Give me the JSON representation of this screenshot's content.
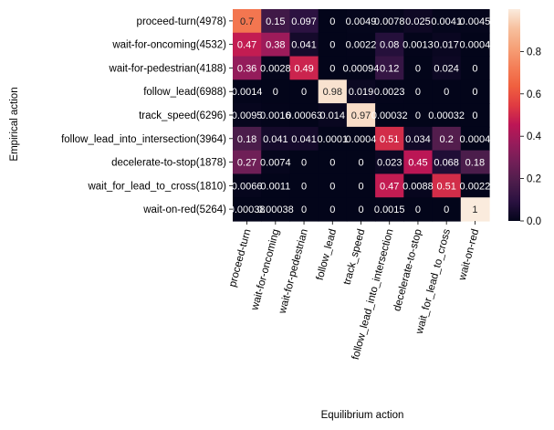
{
  "chart_data": {
    "type": "heatmap",
    "xlabel": "Equilibrium action",
    "ylabel": "Empirical action",
    "x_categories": [
      "proceed-turn",
      "wait-for-oncoming",
      "wait-for-pedestrian",
      "follow_lead",
      "track_speed",
      "follow_lead_into_intersection",
      "decelerate-to-stop",
      "wait_for_lead_to_cross",
      "wait-on-red"
    ],
    "y_categories": [
      "proceed-turn(4978)",
      "wait-for-oncoming(4532)",
      "wait-for-pedestrian(4188)",
      "follow_lead(6988)",
      "track_speed(6296)",
      "follow_lead_into_intersection(3964)",
      "decelerate-to-stop(1878)",
      "wait_for_lead_to_cross(1810)",
      "wait-on-red(5264)"
    ],
    "values": [
      [
        0.7,
        0.15,
        0.097,
        0,
        0.0049,
        0.0078,
        0.025,
        0.0041,
        0.0045
      ],
      [
        0.47,
        0.38,
        0.041,
        0,
        0.0022,
        0.08,
        0.0013,
        0.017,
        0.0004
      ],
      [
        0.36,
        0.0028,
        0.49,
        0,
        0.00094,
        0.12,
        0,
        0.024,
        0
      ],
      [
        0.0014,
        0,
        0,
        0.98,
        0.019,
        0.0023,
        0,
        0,
        0
      ],
      [
        0.0095,
        0.0016,
        0.00063,
        0.014,
        0.97,
        0.00032,
        0,
        0.00032,
        0
      ],
      [
        0.18,
        0.041,
        0.041,
        0.0001,
        0.0004,
        0.51,
        0.034,
        0.2,
        0.0004
      ],
      [
        0.27,
        0.0074,
        0,
        0,
        0,
        0.023,
        0.45,
        0.068,
        0.18
      ],
      [
        0.0066,
        0.0011,
        0,
        0,
        0,
        0.47,
        0.0088,
        0.51,
        0.0022
      ],
      [
        0.00038,
        0.00038,
        0,
        0,
        0,
        0.0015,
        0,
        0,
        1
      ]
    ],
    "cell_labels": [
      [
        "0.7",
        "0.15",
        "0.097",
        "0",
        "0.0049",
        "0.0078",
        "0.025",
        "0.0041",
        "0.0045"
      ],
      [
        "0.47",
        "0.38",
        "0.041",
        "0",
        "0.0022",
        "0.08",
        "0.0013",
        "0.017",
        "0.0004"
      ],
      [
        "0.36",
        "0.0028",
        "0.49",
        "0",
        "0.00094",
        "0.12",
        "0",
        "0.024",
        "0"
      ],
      [
        "0.0014",
        "0",
        "0",
        "0.98",
        "0.019",
        "0.0023",
        "0",
        "0",
        "0"
      ],
      [
        "0.0095",
        "0.0016",
        "0.00063",
        "0.014",
        "0.97",
        "0.00032",
        "0",
        "0.00032",
        "0"
      ],
      [
        "0.18",
        "0.041",
        "0.041",
        "0.0001",
        "0.0004",
        "0.51",
        "0.034",
        "0.2",
        "0.0004"
      ],
      [
        "0.27",
        "0.0074",
        "0",
        "0",
        "0",
        "0.023",
        "0.45",
        "0.068",
        "0.18"
      ],
      [
        "0.0066",
        "0.0011",
        "0",
        "0",
        "0",
        "0.47",
        "0.0088",
        "0.51",
        "0.0022"
      ],
      [
        "0.00038",
        "0.00038",
        "0",
        "0",
        "0",
        "0.0015",
        "0",
        "0",
        "1"
      ]
    ],
    "colorbar": {
      "min": 0,
      "max": 1,
      "ticks": [
        "0.0",
        "0.2",
        "0.4",
        "0.6",
        "0.8"
      ],
      "tick_values": [
        0,
        0.2,
        0.4,
        0.6,
        0.8
      ]
    },
    "colormap_stops": [
      "#03051a",
      "#2a1140",
      "#4c1d4b",
      "#701f57",
      "#961c5b",
      "#bd1655",
      "#e03b42",
      "#f0603f",
      "#f47f58",
      "#f6a178",
      "#f7c09e",
      "#faebdd"
    ],
    "grid": false,
    "legend": "colorbar-right"
  }
}
